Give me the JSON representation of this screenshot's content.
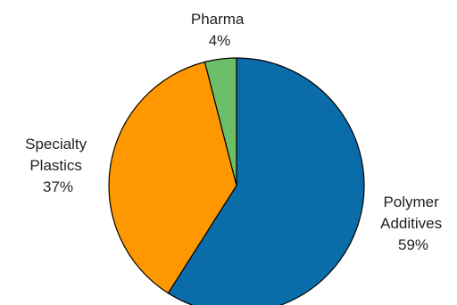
{
  "chart_data": {
    "type": "pie",
    "title": "",
    "slices": [
      {
        "label": [
          "Polymer",
          "Additives"
        ],
        "percent_label": "59%",
        "value": 59,
        "color": "#0A6DAA"
      },
      {
        "label": [
          "Specialty",
          "Plastics"
        ],
        "percent_label": "37%",
        "value": 37,
        "color": "#FF9800"
      },
      {
        "label": [
          "Pharma"
        ],
        "percent_label": "4%",
        "value": 4,
        "color": "#6CBF66"
      }
    ],
    "start_angle_deg": 0,
    "direction": "clockwise",
    "legend": "none"
  }
}
